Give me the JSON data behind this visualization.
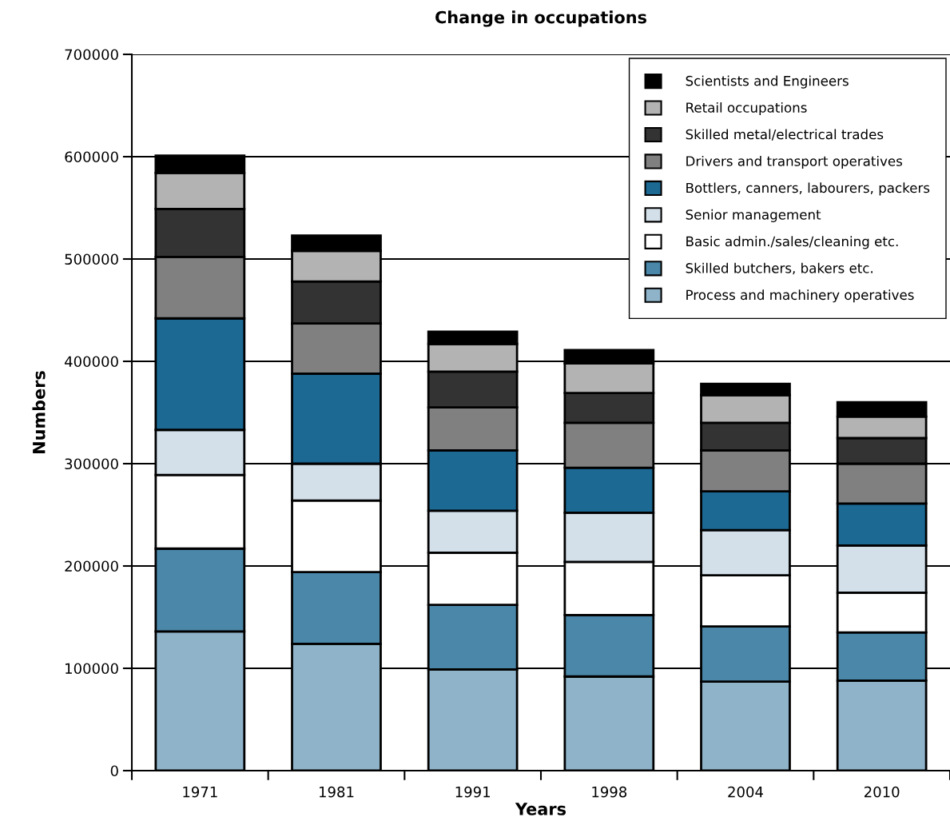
{
  "chart_data": {
    "type": "bar",
    "title": "Change in occupations",
    "xlabel": "Years",
    "ylabel": "Numbers",
    "categories": [
      "1971",
      "1981",
      "1991",
      "1998",
      "2004",
      "2010"
    ],
    "stacked": true,
    "ylim": [
      0,
      700000
    ],
    "yticks": [
      0,
      100000,
      200000,
      300000,
      400000,
      500000,
      600000,
      700000
    ],
    "grid": "y",
    "legend": "top right",
    "series": [
      {
        "name": "Process and machinery operatives",
        "color": "#8fb3c9",
        "values": [
          136000,
          124000,
          99000,
          92000,
          87000,
          88000
        ]
      },
      {
        "name": "Skilled butchers, bakers etc.",
        "color": "#4a87a8",
        "values": [
          81000,
          70000,
          63000,
          60000,
          54000,
          47000
        ]
      },
      {
        "name": "Basic admin./sales/cleaning etc.",
        "color": "#ffffff",
        "values": [
          72000,
          70000,
          51000,
          52000,
          50000,
          39000
        ]
      },
      {
        "name": "Senior management",
        "color": "#d3e0ea",
        "values": [
          44000,
          36000,
          41000,
          48000,
          44000,
          46000
        ]
      },
      {
        "name": "Bottlers, canners, labourers, packers",
        "color": "#1c6994",
        "values": [
          109000,
          88000,
          59000,
          44000,
          38000,
          41000
        ]
      },
      {
        "name": "Drivers and transport operatives",
        "color": "#808080",
        "values": [
          60000,
          49000,
          42000,
          44000,
          40000,
          39000
        ]
      },
      {
        "name": "Skilled metal/electrical trades",
        "color": "#333333",
        "values": [
          47000,
          41000,
          35000,
          29000,
          27000,
          25000
        ]
      },
      {
        "name": "Retail occupations",
        "color": "#b3b3b3",
        "values": [
          35000,
          30000,
          27000,
          29000,
          27000,
          21000
        ]
      },
      {
        "name": "Scientists and Engineers",
        "color": "#000000",
        "values": [
          17000,
          15000,
          12000,
          13000,
          11000,
          14000
        ]
      }
    ]
  }
}
